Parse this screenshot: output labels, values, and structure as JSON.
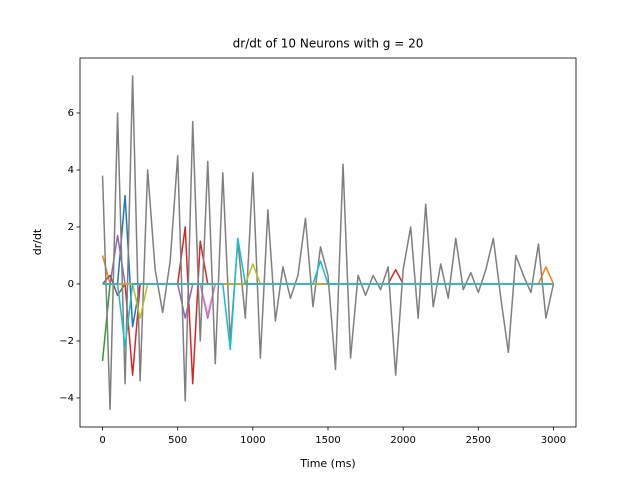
{
  "chart_data": {
    "type": "line",
    "title": "dr/dt of 10 Neurons with g = 20",
    "xlabel": "Time (ms)",
    "ylabel": "dr/dt",
    "x": [
      0,
      50,
      100,
      150,
      200,
      250,
      300,
      350,
      400,
      450,
      500,
      550,
      600,
      650,
      700,
      750,
      800,
      850,
      900,
      950,
      1000,
      1050,
      1100,
      1150,
      1200,
      1250,
      1300,
      1350,
      1400,
      1450,
      1500,
      1550,
      1600,
      1650,
      1700,
      1750,
      1800,
      1850,
      1900,
      1950,
      2000,
      2050,
      2100,
      2150,
      2200,
      2250,
      2300,
      2350,
      2400,
      2450,
      2500,
      2550,
      2600,
      2650,
      2700,
      2750,
      2800,
      2850,
      2900,
      2950,
      3000
    ],
    "series": [
      {
        "color": "#1f77b4",
        "values": [
          0,
          0,
          0,
          3.1,
          -1.5,
          0,
          0,
          0,
          0,
          0,
          0,
          0,
          0,
          0,
          0,
          0,
          0,
          0,
          0,
          0,
          0,
          0,
          0,
          0,
          0,
          0,
          0,
          0,
          0,
          0,
          0,
          0,
          0,
          0,
          0,
          0,
          0,
          0,
          0,
          0,
          0,
          0,
          0,
          0,
          0,
          0,
          0,
          0,
          0,
          0,
          0,
          0,
          0,
          0,
          0,
          0,
          0,
          0,
          0,
          0,
          0
        ]
      },
      {
        "color": "#ff7f0e",
        "values": [
          1,
          0,
          0,
          0,
          0,
          0,
          0,
          0,
          0,
          0,
          0,
          0,
          0,
          0,
          0,
          0,
          0,
          0,
          0,
          0,
          0,
          0,
          0,
          0,
          0,
          0,
          0,
          0,
          0,
          0,
          0,
          0,
          0,
          0,
          0,
          0,
          0,
          0,
          0,
          0,
          0,
          0,
          0,
          0,
          0,
          0,
          0,
          0,
          0,
          0,
          0,
          0,
          0,
          0,
          0,
          0,
          0,
          0,
          0,
          0.6,
          0
        ]
      },
      {
        "color": "#2ca02c",
        "values": [
          -2.7,
          0,
          0,
          0,
          0,
          0,
          0,
          0,
          0,
          0,
          0,
          0,
          0,
          0,
          0,
          0,
          0,
          0,
          0,
          0,
          0,
          0,
          0,
          0,
          0,
          0,
          0,
          0,
          0,
          0,
          0,
          0,
          0,
          0,
          0,
          0,
          0,
          0,
          0,
          0,
          0,
          0,
          0,
          0,
          0,
          0,
          0,
          0,
          0,
          0,
          0,
          0,
          0,
          0,
          0,
          0,
          0,
          0,
          0,
          0,
          0
        ]
      },
      {
        "color": "#d62728",
        "values": [
          0,
          0,
          0,
          0,
          -3.2,
          0,
          0,
          0,
          0,
          0,
          0,
          2,
          -3.5,
          1.5,
          0,
          0,
          0,
          0,
          0,
          0,
          0,
          0,
          0,
          0,
          0,
          0,
          0,
          0,
          0,
          0,
          0,
          0,
          0,
          0,
          0,
          0,
          0,
          0,
          0,
          0.5,
          0,
          0,
          0,
          0,
          0,
          0,
          0,
          0,
          0,
          0,
          0,
          0,
          0,
          0,
          0,
          0,
          0,
          0,
          0,
          0,
          0
        ]
      },
      {
        "color": "#9467bd",
        "values": [
          0,
          0,
          1.7,
          0,
          0,
          0,
          0,
          0,
          0,
          0,
          0,
          -1.2,
          0,
          0,
          -1.2,
          0,
          0,
          0,
          0,
          0,
          0,
          0,
          0,
          0,
          0,
          0,
          0,
          0,
          0,
          0,
          0,
          0,
          0,
          0,
          0,
          0,
          0,
          0,
          0,
          0,
          0,
          0,
          0,
          0,
          0,
          0,
          0,
          0,
          0,
          0,
          0,
          0,
          0,
          0,
          0,
          0,
          0,
          0,
          0,
          0,
          0
        ]
      },
      {
        "color": "#8c564b",
        "values": [
          0,
          0.3,
          -0.4,
          0,
          0,
          0,
          0,
          0,
          0,
          0,
          0,
          0,
          0,
          0,
          0,
          0,
          0,
          0,
          0,
          0,
          0,
          0,
          0,
          0,
          0,
          0,
          0,
          0,
          0,
          0,
          0,
          0,
          0,
          0,
          0,
          0,
          0,
          0,
          0,
          0,
          0,
          0,
          0,
          0,
          0,
          0,
          0,
          0,
          0,
          0,
          0,
          0,
          0,
          0,
          0,
          0,
          0,
          0,
          0,
          0,
          0
        ]
      },
      {
        "color": "#e377c2",
        "values": [
          0,
          0,
          0,
          0,
          0,
          0,
          0,
          0,
          0,
          0,
          0,
          0,
          0,
          0,
          -1.1,
          0,
          0,
          0,
          0,
          0,
          0,
          0,
          0,
          0,
          0,
          0,
          0,
          0,
          0,
          0,
          0,
          0,
          0,
          0,
          0,
          0,
          0,
          0,
          0,
          0,
          0,
          0,
          0,
          0,
          0,
          0,
          0,
          0,
          0,
          0,
          0,
          0,
          0,
          0,
          0,
          0,
          0,
          0,
          0,
          0,
          0
        ]
      },
      {
        "color": "#7f7f7f",
        "values": [
          3.8,
          -4.4,
          6.0,
          -3.5,
          7.3,
          -3.4,
          4.0,
          0.5,
          -1.0,
          0.8,
          4.5,
          -4.1,
          5.7,
          -2.0,
          4.3,
          -2.8,
          3.9,
          -2.0,
          1.5,
          -1.2,
          3.9,
          -2.6,
          2.6,
          -1.3,
          0.6,
          -0.5,
          0.3,
          2.3,
          -0.8,
          1.3,
          0.3,
          -3.0,
          4.2,
          -2.6,
          0.3,
          -0.4,
          0.3,
          -0.2,
          0.6,
          -3.2,
          0.5,
          2.0,
          -1.2,
          2.8,
          -0.8,
          0.7,
          -0.5,
          1.6,
          -0.2,
          0.4,
          -0.3,
          0.5,
          1.6,
          -0.5,
          -2.4,
          1.0,
          0.3,
          -0.3,
          1.4,
          -1.2,
          0
        ]
      },
      {
        "color": "#bcbd22",
        "values": [
          0,
          0,
          0,
          0,
          0,
          -1.2,
          0,
          0,
          0,
          0,
          0,
          0,
          0,
          0,
          0,
          0,
          0,
          0,
          0,
          0,
          0.7,
          0,
          0,
          0,
          0,
          0,
          0,
          0,
          0,
          0,
          0,
          0,
          0,
          0,
          0,
          0,
          0,
          0,
          0,
          0,
          0,
          0,
          0,
          0,
          0,
          0,
          0,
          0,
          0,
          0,
          0,
          0,
          0,
          0,
          0,
          0,
          0,
          0,
          0,
          0,
          0
        ]
      },
      {
        "color": "#17becf",
        "values": [
          0,
          0,
          0,
          -2.2,
          0,
          0,
          0,
          0,
          0,
          0,
          0,
          0,
          0,
          0,
          0,
          0,
          0,
          -2.3,
          1.6,
          0,
          0,
          0,
          0,
          0,
          0,
          0,
          0,
          0,
          0,
          0.8,
          0,
          0,
          0,
          0,
          0,
          0,
          0,
          0,
          0,
          0,
          0,
          0,
          0,
          0,
          0,
          0,
          0,
          0,
          0,
          0,
          0,
          0,
          0,
          0,
          0,
          0,
          0,
          0,
          0,
          0,
          0
        ]
      }
    ],
    "xlim": [
      -150,
      3150
    ],
    "ylim": [
      -5.02,
      7.93
    ],
    "xticks": [
      0,
      500,
      1000,
      1500,
      2000,
      2500,
      3000
    ],
    "yticks": [
      {
        "value": -4,
        "label": "−4"
      },
      {
        "value": -2,
        "label": "−2"
      },
      0,
      2,
      4,
      6
    ]
  }
}
